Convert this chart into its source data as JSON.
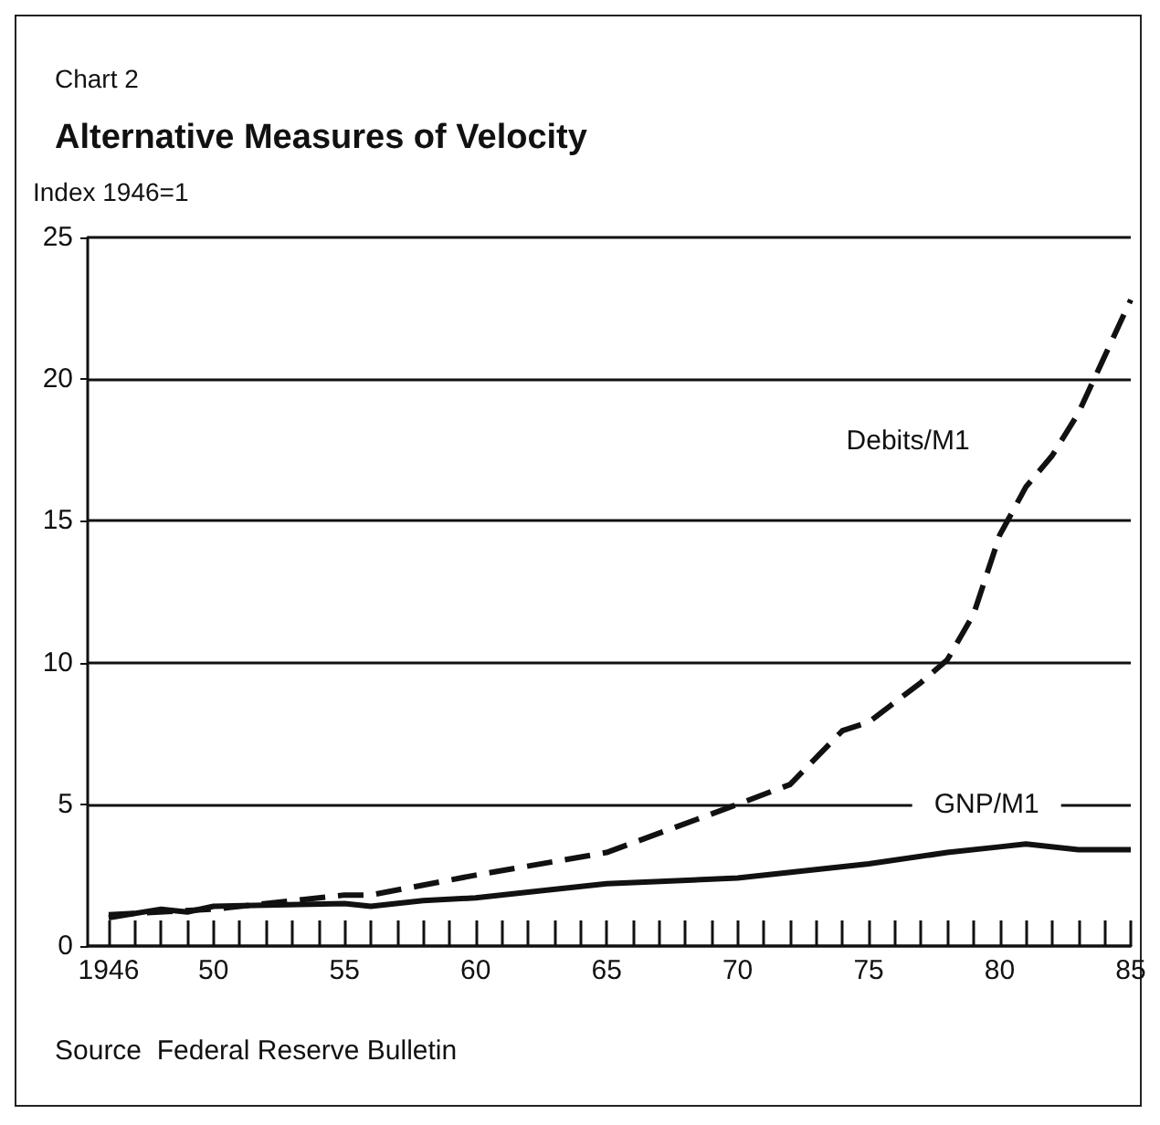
{
  "chart_data": {
    "type": "line",
    "subtitle": "Chart 2",
    "title": "Alternative Measures of Velocity",
    "ylabel": "Index 1946=1",
    "annotations": [
      "Source  Federal Reserve Bulletin"
    ],
    "xlim": [
      1945.2,
      1985
    ],
    "xticks": [
      {
        "value": 1946,
        "label": "1946"
      },
      {
        "value": 1947,
        "label": null
      },
      {
        "value": 1948,
        "label": null
      },
      {
        "value": 1949,
        "label": null
      },
      {
        "value": 1950,
        "label": "50"
      },
      {
        "value": 1951,
        "label": null
      },
      {
        "value": 1952,
        "label": null
      },
      {
        "value": 1953,
        "label": null
      },
      {
        "value": 1954,
        "label": null
      },
      {
        "value": 1955,
        "label": "55"
      },
      {
        "value": 1956,
        "label": null
      },
      {
        "value": 1957,
        "label": null
      },
      {
        "value": 1958,
        "label": null
      },
      {
        "value": 1959,
        "label": null
      },
      {
        "value": 1960,
        "label": "60"
      },
      {
        "value": 1961,
        "label": null
      },
      {
        "value": 1962,
        "label": null
      },
      {
        "value": 1963,
        "label": null
      },
      {
        "value": 1964,
        "label": null
      },
      {
        "value": 1965,
        "label": "65"
      },
      {
        "value": 1966,
        "label": null
      },
      {
        "value": 1967,
        "label": null
      },
      {
        "value": 1968,
        "label": null
      },
      {
        "value": 1969,
        "label": null
      },
      {
        "value": 1970,
        "label": "70"
      },
      {
        "value": 1971,
        "label": null
      },
      {
        "value": 1972,
        "label": null
      },
      {
        "value": 1973,
        "label": null
      },
      {
        "value": 1974,
        "label": null
      },
      {
        "value": 1975,
        "label": "75"
      },
      {
        "value": 1976,
        "label": null
      },
      {
        "value": 1977,
        "label": null
      },
      {
        "value": 1978,
        "label": null
      },
      {
        "value": 1979,
        "label": null
      },
      {
        "value": 1980,
        "label": "80"
      },
      {
        "value": 1981,
        "label": null
      },
      {
        "value": 1982,
        "label": null
      },
      {
        "value": 1983,
        "label": null
      },
      {
        "value": 1984,
        "label": null
      },
      {
        "value": 1985,
        "label": "85"
      }
    ],
    "ylim": [
      0,
      25
    ],
    "yticks": [
      0,
      5,
      10,
      15,
      20,
      25
    ],
    "grid": "y",
    "marker": "none",
    "legend": false,
    "series": [
      {
        "name": "Debits/M1",
        "color": "#111111",
        "line_style": "dashed",
        "x": [
          1946,
          1950,
          1955,
          1956,
          1960,
          1965,
          1970,
          1972,
          1974,
          1975,
          1977,
          1978,
          1979,
          1980,
          1981,
          1982,
          1983,
          1984,
          1985
        ],
        "values": [
          1.1,
          1.3,
          1.8,
          1.8,
          2.5,
          3.3,
          5.0,
          5.7,
          7.6,
          7.9,
          9.3,
          10.1,
          11.7,
          14.5,
          16.2,
          17.3,
          18.8,
          20.8,
          22.8
        ]
      },
      {
        "name": "GNP/M1",
        "color": "#111111",
        "line_style": "solid",
        "x": [
          1946,
          1948,
          1949,
          1950,
          1955,
          1956,
          1958,
          1960,
          1962,
          1965,
          1970,
          1975,
          1978,
          1980,
          1981,
          1983,
          1985
        ],
        "values": [
          1.0,
          1.3,
          1.2,
          1.4,
          1.5,
          1.4,
          1.6,
          1.7,
          1.9,
          2.2,
          2.4,
          2.9,
          3.3,
          3.5,
          3.6,
          3.4,
          3.4
        ]
      }
    ]
  }
}
